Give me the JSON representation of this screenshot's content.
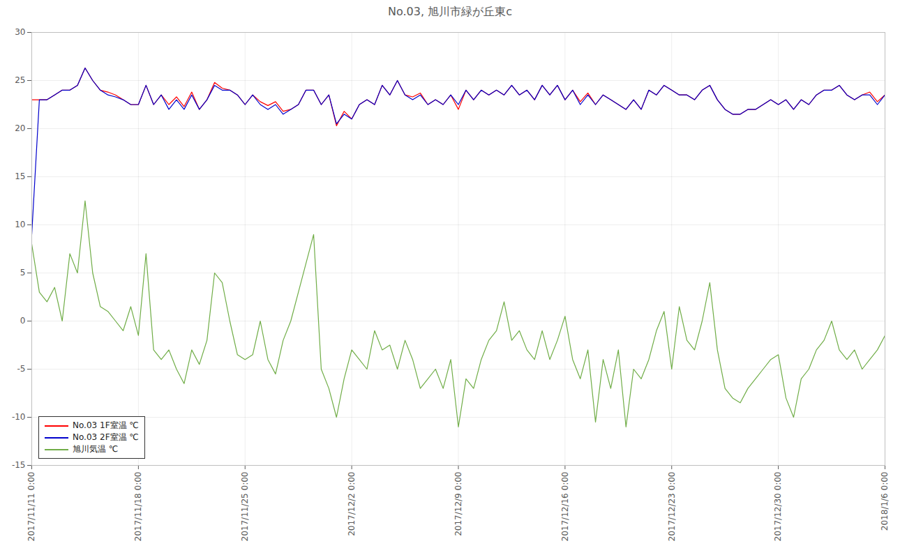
{
  "chart_data": {
    "type": "line",
    "title": "No.03, 旭川市緑が丘東c",
    "x": [
      "2017-11-11T00:00",
      "2017-11-11T12:00",
      "2017-11-12T00:00",
      "2017-11-12T12:00",
      "2017-11-13T00:00",
      "2017-11-13T12:00",
      "2017-11-14T00:00",
      "2017-11-14T12:00",
      "2017-11-15T00:00",
      "2017-11-15T12:00",
      "2017-11-16T00:00",
      "2017-11-16T12:00",
      "2017-11-17T00:00",
      "2017-11-17T12:00",
      "2017-11-18T00:00",
      "2017-11-18T12:00",
      "2017-11-19T00:00",
      "2017-11-19T12:00",
      "2017-11-20T00:00",
      "2017-11-20T12:00",
      "2017-11-21T00:00",
      "2017-11-21T12:00",
      "2017-11-22T00:00",
      "2017-11-22T12:00",
      "2017-11-23T00:00",
      "2017-11-23T12:00",
      "2017-11-24T00:00",
      "2017-11-24T12:00",
      "2017-11-25T00:00",
      "2017-11-25T12:00",
      "2017-11-26T00:00",
      "2017-11-26T12:00",
      "2017-11-27T00:00",
      "2017-11-27T12:00",
      "2017-11-28T00:00",
      "2017-11-28T12:00",
      "2017-11-29T00:00",
      "2017-11-29T12:00",
      "2017-11-30T00:00",
      "2017-11-30T12:00",
      "2017-12-01T00:00",
      "2017-12-01T12:00",
      "2017-12-02T00:00",
      "2017-12-02T12:00",
      "2017-12-03T00:00",
      "2017-12-03T12:00",
      "2017-12-04T00:00",
      "2017-12-04T12:00",
      "2017-12-05T00:00",
      "2017-12-05T12:00",
      "2017-12-06T00:00",
      "2017-12-06T12:00",
      "2017-12-07T00:00",
      "2017-12-07T12:00",
      "2017-12-08T00:00",
      "2017-12-08T12:00",
      "2017-12-09T00:00",
      "2017-12-09T12:00",
      "2017-12-10T00:00",
      "2017-12-10T12:00",
      "2017-12-11T00:00",
      "2017-12-11T12:00",
      "2017-12-12T00:00",
      "2017-12-12T12:00",
      "2017-12-13T00:00",
      "2017-12-13T12:00",
      "2017-12-14T00:00",
      "2017-12-14T12:00",
      "2017-12-15T00:00",
      "2017-12-15T12:00",
      "2017-12-16T00:00",
      "2017-12-16T12:00",
      "2017-12-17T00:00",
      "2017-12-17T12:00",
      "2017-12-18T00:00",
      "2017-12-18T12:00",
      "2017-12-19T00:00",
      "2017-12-19T12:00",
      "2017-12-20T00:00",
      "2017-12-20T12:00",
      "2017-12-21T00:00",
      "2017-12-21T12:00",
      "2017-12-22T00:00",
      "2017-12-22T12:00",
      "2017-12-23T00:00",
      "2017-12-23T12:00",
      "2017-12-24T00:00",
      "2017-12-24T12:00",
      "2017-12-25T00:00",
      "2017-12-25T12:00",
      "2017-12-26T00:00",
      "2017-12-26T12:00",
      "2017-12-27T00:00",
      "2017-12-27T12:00",
      "2017-12-28T00:00",
      "2017-12-28T12:00",
      "2017-12-29T00:00",
      "2017-12-29T12:00",
      "2017-12-30T00:00",
      "2017-12-30T12:00",
      "2017-12-31T00:00",
      "2017-12-31T12:00",
      "2018-01-01T00:00",
      "2018-01-01T12:00",
      "2018-01-02T00:00",
      "2018-01-02T12:00",
      "2018-01-03T00:00",
      "2018-01-03T12:00",
      "2018-01-04T00:00",
      "2018-01-04T12:00",
      "2018-01-05T00:00",
      "2018-01-05T12:00",
      "2018-01-06T00:00"
    ],
    "series": [
      {
        "name": "No.03 1F室温 ℃",
        "color": "#ff0000",
        "values": [
          23,
          23,
          23,
          23.5,
          24,
          24,
          24.5,
          26.3,
          25,
          24,
          23.8,
          23.5,
          23,
          22.5,
          22.5,
          24.5,
          22.5,
          23.5,
          22.5,
          23.3,
          22.3,
          23.8,
          22,
          23,
          24.8,
          24.2,
          24,
          23.5,
          22.5,
          23.5,
          22.8,
          22.4,
          22.8,
          21.8,
          22,
          22.5,
          24,
          24,
          22.5,
          23.5,
          20.3,
          21.8,
          21,
          22.5,
          23,
          22.5,
          24.5,
          23.5,
          25,
          23.5,
          23.3,
          23.7,
          22.5,
          23,
          22.5,
          23.5,
          22,
          24,
          23,
          24,
          23.5,
          24,
          23.5,
          24.5,
          23.5,
          24,
          23,
          24.5,
          23.5,
          24.5,
          23,
          24,
          22.8,
          23.7,
          22.5,
          23.5,
          23,
          22.5,
          22,
          23,
          22,
          24,
          23.5,
          24.5,
          24,
          23.5,
          23.5,
          23,
          24,
          24.5,
          23,
          22,
          21.5,
          21.5,
          22,
          22,
          22.5,
          23,
          22.5,
          23,
          22,
          23,
          22.5,
          23.5,
          24,
          24,
          24.5,
          23.5,
          23,
          23.5,
          23.8,
          22.8,
          23.5
        ]
      },
      {
        "name": "No.03 2F室温 ℃",
        "color": "#0000cc",
        "values": [
          9,
          23,
          23,
          23.5,
          24,
          24,
          24.5,
          26.3,
          25,
          24,
          23.5,
          23.3,
          23,
          22.5,
          22.5,
          24.5,
          22.5,
          23.5,
          22,
          23,
          22,
          23.5,
          22,
          23,
          24.5,
          24,
          24,
          23.5,
          22.5,
          23.5,
          22.5,
          22,
          22.5,
          21.5,
          22,
          22.5,
          24,
          24,
          22.5,
          23.5,
          20.5,
          21.5,
          21,
          22.5,
          23,
          22.5,
          24.5,
          23.5,
          25,
          23.5,
          23,
          23.5,
          22.5,
          23,
          22.5,
          23.5,
          22.5,
          24,
          23,
          24,
          23.5,
          24,
          23.5,
          24.5,
          23.5,
          24,
          23,
          24.5,
          23.5,
          24.5,
          23,
          24,
          22.5,
          23.5,
          22.5,
          23.5,
          23,
          22.5,
          22,
          23,
          22,
          24,
          23.5,
          24.5,
          24,
          23.5,
          23.5,
          23,
          24,
          24.5,
          23,
          22,
          21.5,
          21.5,
          22,
          22,
          22.5,
          23,
          22.5,
          23,
          22,
          23,
          22.5,
          23.5,
          24,
          24,
          24.5,
          23.5,
          23,
          23.5,
          23.5,
          22.5,
          23.5
        ]
      },
      {
        "name": "旭川気温 ℃",
        "color": "#70ad47",
        "values": [
          8,
          3,
          2,
          3.5,
          0,
          7,
          5,
          12.5,
          5,
          1.5,
          1,
          0,
          -1,
          1.5,
          -1.5,
          7,
          -3,
          -4,
          -3,
          -5,
          -6.5,
          -3,
          -4.5,
          -2,
          5,
          4,
          0,
          -3.5,
          -4,
          -3.5,
          0,
          -4,
          -5.5,
          -2,
          0,
          3,
          6,
          9,
          -5,
          -7,
          -10,
          -6,
          -3,
          -4,
          -5,
          -1,
          -3,
          -2.5,
          -5,
          -2,
          -4,
          -7,
          -6,
          -5,
          -7,
          -4,
          -11,
          -6,
          -7,
          -4,
          -2,
          -1,
          2,
          -2,
          -1,
          -3,
          -4,
          -1,
          -4,
          -2,
          0.5,
          -4,
          -6,
          -3,
          -10.5,
          -4,
          -7,
          -3,
          -11,
          -5,
          -6,
          -4,
          -1,
          1,
          -5,
          1.5,
          -2,
          -3,
          0,
          4,
          -3,
          -7,
          -8,
          -8.5,
          -7,
          -6,
          -5,
          -4,
          -3.5,
          -8,
          -10,
          -6,
          -5,
          -3,
          -2,
          0,
          -3,
          -4,
          -3,
          -5,
          -4,
          -3,
          -1.5
        ]
      }
    ],
    "xlim": [
      "2017-11-11T00:00",
      "2018-01-06T00:00"
    ],
    "xticks": [
      {
        "value": "2017-11-11T00:00",
        "label": "2017/11/11 0:00"
      },
      {
        "value": "2017-11-18T00:00",
        "label": "2017/11/18 0:00"
      },
      {
        "value": "2017-11-25T00:00",
        "label": "2017/11/25 0:00"
      },
      {
        "value": "2017-12-02T00:00",
        "label": "2017/12/2 0:00"
      },
      {
        "value": "2017-12-09T00:00",
        "label": "2017/12/9 0:00"
      },
      {
        "value": "2017-12-16T00:00",
        "label": "2017/12/16 0:00"
      },
      {
        "value": "2017-12-23T00:00",
        "label": "2017/12/23 0:00"
      },
      {
        "value": "2017-12-30T00:00",
        "label": "2017/12/30 0:00"
      },
      {
        "value": "2018-01-06T00:00",
        "label": "2018/1/6 0:00"
      }
    ],
    "ylim": [
      -15,
      30
    ],
    "yticks": [
      -15,
      -10,
      -5,
      0,
      5,
      10,
      15,
      20,
      25,
      30
    ],
    "grid": true,
    "legend": "lower left"
  }
}
